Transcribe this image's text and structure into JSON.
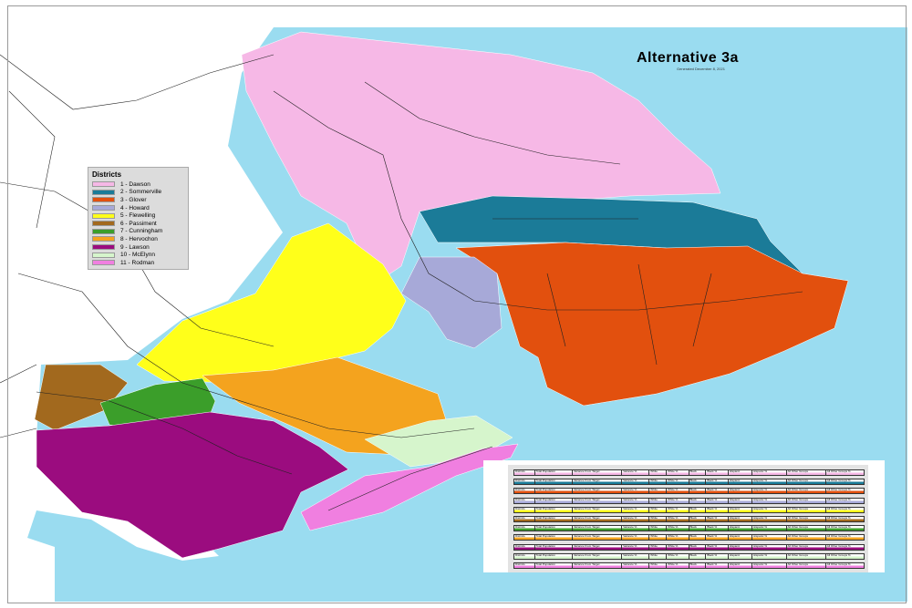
{
  "title": "Alternative 3a",
  "subtitle": "Generated December 8, 2021",
  "colors": {
    "water": "#9adcf0",
    "land": "#ffffff",
    "roads": "#222222",
    "legend_bg": "#dcdcdc"
  },
  "legend": {
    "title": "Districts",
    "items": [
      {
        "label": "1 - Dawson",
        "color": "#f6b8e6"
      },
      {
        "label": "2 - Sommerville",
        "color": "#1b7b98"
      },
      {
        "label": "3 - Glover",
        "color": "#e2500e"
      },
      {
        "label": "4 - Howard",
        "color": "#a7a9d8"
      },
      {
        "label": "5 - Flewelling",
        "color": "#ffff1a"
      },
      {
        "label": "6 - Passiment",
        "color": "#a2691e"
      },
      {
        "label": "7 - Cunningham",
        "color": "#3b9e2a"
      },
      {
        "label": "8 - Hervochon",
        "color": "#f4a31e"
      },
      {
        "label": "9 - Lawson",
        "color": "#9b0c7f"
      },
      {
        "label": "10 - McElynn",
        "color": "#d6f5cc"
      },
      {
        "label": "11 - Rodman",
        "color": "#f07fe0"
      }
    ]
  },
  "stats_table": {
    "headers": [
      "Districts",
      "Total Population",
      "Variance From Target",
      "Variance %",
      "White",
      "White %",
      "Black",
      "Black %",
      "Hispanic",
      "Hispanic %",
      "All Other Groups",
      "All Other Groups %"
    ]
  }
}
